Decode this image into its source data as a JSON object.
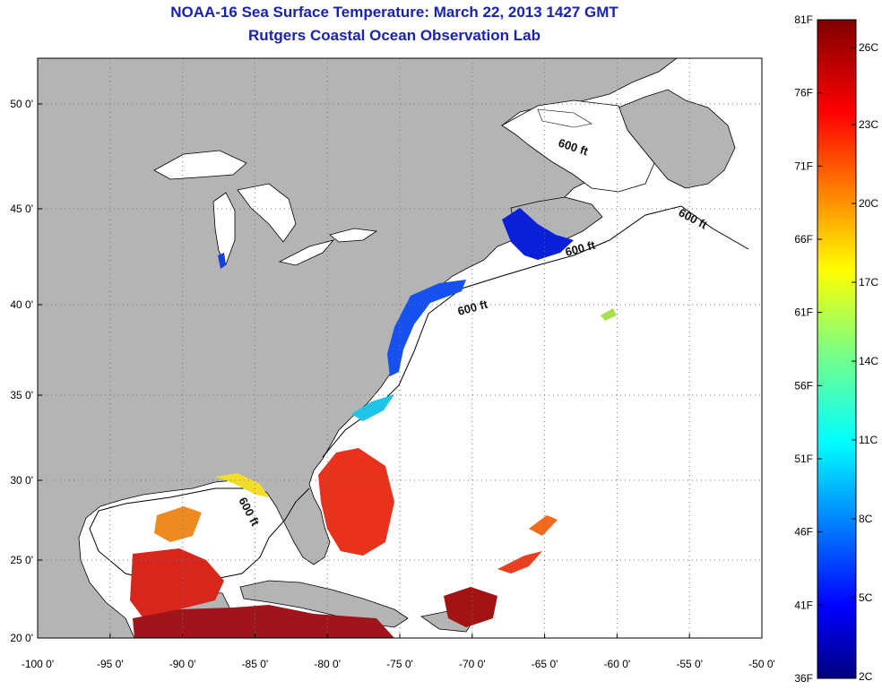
{
  "title": "NOAA-16 Sea Surface Temperature:  March 22, 2013 1427 GMT",
  "subtitle": "Rutgers Coastal Ocean Observation Lab",
  "axes": {
    "x_ticks": [
      "-100 0'",
      "-95 0'",
      "-90 0'",
      "-85 0'",
      "-80 0'",
      "-75 0'",
      "-70 0'",
      "-65 0'",
      "-60 0'",
      "-55 0'",
      "-50 0'"
    ],
    "y_ticks": [
      "20 0'",
      "25 0'",
      "30 0'",
      "35 0'",
      "40 0'",
      "45 0'",
      "50 0'"
    ],
    "lon_range": [
      -100,
      -50
    ],
    "lat_range": [
      20,
      52.5
    ],
    "grid": "dotted"
  },
  "contour_label": "600 ft",
  "colorbar": {
    "f_labels": [
      "81F",
      "76F",
      "71F",
      "66F",
      "61F",
      "56F",
      "51F",
      "46F",
      "41F",
      "36F"
    ],
    "c_labels": [
      "26C",
      "23C",
      "20C",
      "17C",
      "14C",
      "11C",
      "8C",
      "5C",
      "2C"
    ],
    "colormap": "jet",
    "top_color": "#7f0000",
    "bottom_color": "#00007f"
  },
  "colors": {
    "land": "#b4b4b4",
    "ocean_no_data": "#ffffff",
    "title": "#1a22b0"
  }
}
